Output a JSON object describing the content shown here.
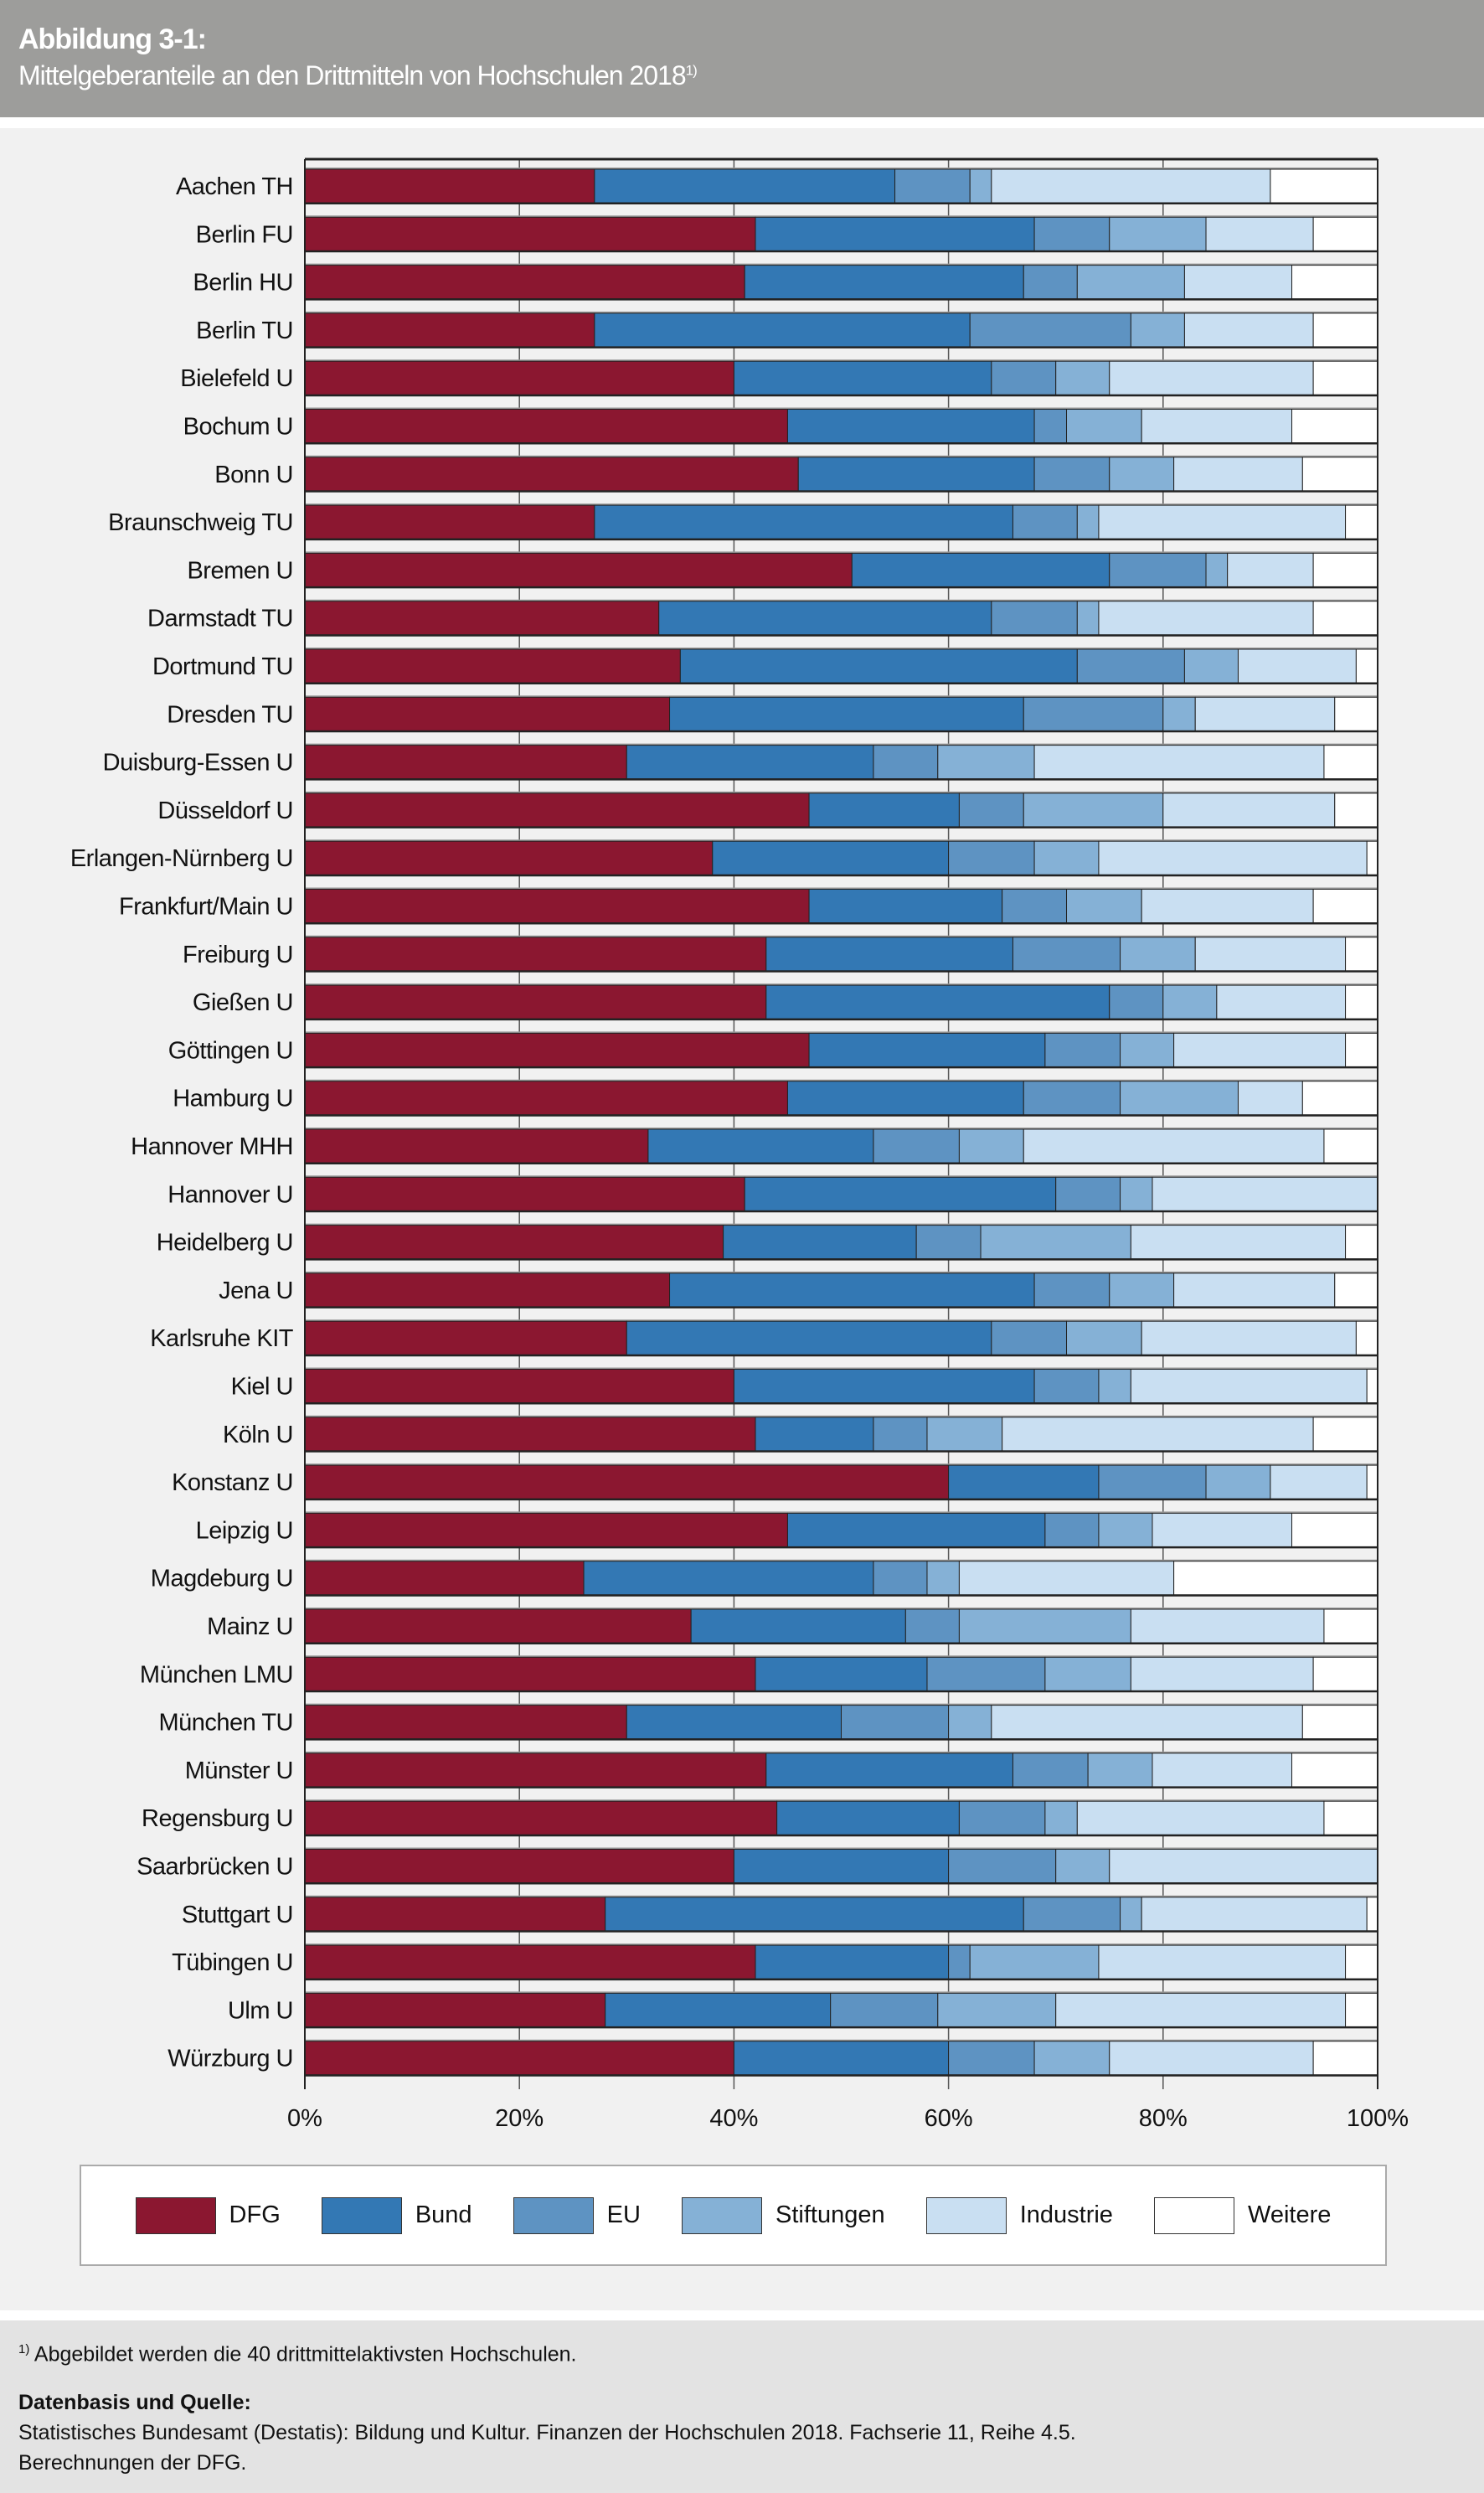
{
  "header": {
    "title": "Abbildung 3-1:",
    "subtitle": "Mittelgeberanteile an den Drittmitteln von Hochschulen 2018",
    "subtitle_note": "1)"
  },
  "chart_data": {
    "type": "bar",
    "orientation": "horizontal",
    "stacked": true,
    "xlim": [
      0,
      100
    ],
    "x_ticks": [
      "0%",
      "20%",
      "40%",
      "60%",
      "80%",
      "100%"
    ],
    "grid": true,
    "legend_position": "bottom",
    "categories": [
      "Aachen TH",
      "Berlin FU",
      "Berlin HU",
      "Berlin TU",
      "Bielefeld U",
      "Bochum U",
      "Bonn U",
      "Braunschweig TU",
      "Bremen U",
      "Darmstadt TU",
      "Dortmund TU",
      "Dresden TU",
      "Duisburg-Essen U",
      "Düsseldorf U",
      "Erlangen-Nürnberg U",
      "Frankfurt/Main U",
      "Freiburg U",
      "Gießen U",
      "Göttingen U",
      "Hamburg U",
      "Hannover MHH",
      "Hannover U",
      "Heidelberg U",
      "Jena U",
      "Karlsruhe KIT",
      "Kiel U",
      "Köln U",
      "Konstanz U",
      "Leipzig U",
      "Magdeburg U",
      "Mainz U",
      "München LMU",
      "München TU",
      "Münster U",
      "Regensburg U",
      "Saarbrücken U",
      "Stuttgart U",
      "Tübingen U",
      "Ulm U",
      "Würzburg U"
    ],
    "series": [
      {
        "name": "DFG",
        "color": "#8b1730",
        "values": [
          27,
          42,
          41,
          27,
          40,
          45,
          46,
          27,
          51,
          33,
          35,
          34,
          30,
          47,
          38,
          47,
          43,
          43,
          47,
          45,
          32,
          41,
          39,
          34,
          30,
          40,
          42,
          60,
          45,
          26,
          36,
          42,
          30,
          43,
          44,
          40,
          28,
          42,
          28,
          40
        ]
      },
      {
        "name": "Bund",
        "color": "#3378b4",
        "values": [
          28,
          26,
          26,
          35,
          24,
          23,
          22,
          39,
          24,
          31,
          37,
          33,
          23,
          14,
          22,
          18,
          23,
          32,
          22,
          22,
          21,
          29,
          18,
          34,
          34,
          28,
          11,
          14,
          24,
          27,
          20,
          16,
          20,
          23,
          17,
          20,
          39,
          18,
          21,
          20
        ]
      },
      {
        "name": "EU",
        "color": "#5e93c2",
        "values": [
          7,
          7,
          5,
          15,
          6,
          3,
          7,
          6,
          9,
          8,
          10,
          13,
          6,
          6,
          8,
          6,
          10,
          5,
          7,
          9,
          8,
          6,
          6,
          7,
          7,
          6,
          5,
          10,
          5,
          5,
          5,
          11,
          10,
          7,
          8,
          10,
          9,
          2,
          10,
          8
        ]
      },
      {
        "name": "Stiftungen",
        "color": "#85b1d6",
        "values": [
          2,
          9,
          10,
          5,
          5,
          7,
          6,
          2,
          2,
          2,
          5,
          3,
          9,
          13,
          6,
          7,
          7,
          5,
          5,
          11,
          6,
          3,
          14,
          6,
          7,
          3,
          7,
          6,
          5,
          3,
          16,
          8,
          4,
          6,
          3,
          5,
          2,
          12,
          11,
          7
        ]
      },
      {
        "name": "Industrie",
        "color": "#c9dff2",
        "values": [
          26,
          10,
          10,
          12,
          19,
          14,
          12,
          23,
          8,
          20,
          11,
          13,
          27,
          16,
          25,
          16,
          14,
          12,
          16,
          6,
          28,
          21,
          20,
          15,
          20,
          22,
          29,
          9,
          13,
          20,
          18,
          17,
          29,
          13,
          23,
          25,
          21,
          23,
          27,
          19
        ]
      },
      {
        "name": "Weitere",
        "color": "#ffffff",
        "values": [
          10,
          6,
          8,
          6,
          6,
          8,
          7,
          3,
          6,
          6,
          2,
          4,
          5,
          4,
          1,
          6,
          3,
          3,
          3,
          7,
          5,
          0,
          3,
          4,
          2,
          1,
          6,
          1,
          8,
          19,
          5,
          6,
          7,
          8,
          5,
          0,
          1,
          3,
          3,
          6
        ]
      }
    ]
  },
  "footer": {
    "footnote_mark": "1)",
    "footnote": "Abgebildet werden die 40 drittmittelaktivsten Hochschulen.",
    "source_heading": "Datenbasis und Quelle:",
    "source_line1": "Statistisches Bundesamt (Destatis): Bildung und Kultur. Finanzen der Hochschulen 2018. Fachserie 11, Reihe 4.5.",
    "source_line2": "Berechnungen der DFG."
  }
}
